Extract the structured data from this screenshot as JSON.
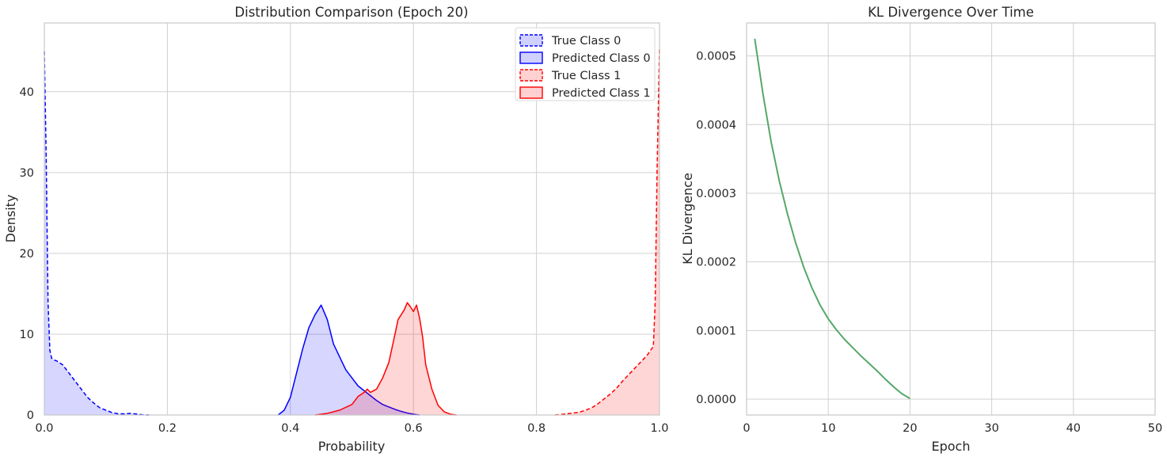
{
  "chart_data": [
    {
      "type": "area",
      "title": "Distribution Comparison (Epoch 20)",
      "xlabel": "Probability",
      "ylabel": "Density",
      "xlim": [
        0,
        1
      ],
      "ylim": [
        0,
        48.5
      ],
      "xticks": [
        "0.0",
        "0.2",
        "0.4",
        "0.6",
        "0.8",
        "1.0"
      ],
      "yticks": [
        "0",
        "10",
        "20",
        "30",
        "40"
      ],
      "grid": true,
      "legend_position": "top-right",
      "series": [
        {
          "name": "True Class 0",
          "color": "#0000ff",
          "linestyle": "dashed",
          "x": [
            0,
            0.003,
            0.006,
            0.009,
            0.012,
            0.016,
            0.02,
            0.03,
            0.04,
            0.05,
            0.06,
            0.07,
            0.08,
            0.09,
            0.1,
            0.11,
            0.12,
            0.13,
            0.14,
            0.15,
            0.16,
            0.17
          ],
          "y": [
            45,
            32,
            14,
            8,
            7,
            6.8,
            6.7,
            6.2,
            5.2,
            4.2,
            3.2,
            2.2,
            1.5,
            0.9,
            0.6,
            0.3,
            0.15,
            0.15,
            0.2,
            0.12,
            0.03,
            0
          ]
        },
        {
          "name": "Predicted Class 0",
          "color": "#0000ff",
          "linestyle": "solid",
          "x": [
            0.38,
            0.39,
            0.4,
            0.41,
            0.42,
            0.43,
            0.44,
            0.45,
            0.46,
            0.47,
            0.48,
            0.49,
            0.5,
            0.51,
            0.52,
            0.53,
            0.54,
            0.55,
            0.56,
            0.57,
            0.58,
            0.59,
            0.6,
            0.61
          ],
          "y": [
            0,
            0.6,
            2.2,
            5.2,
            8.2,
            10.8,
            12.4,
            13.6,
            11.8,
            8.8,
            7.2,
            5.6,
            4.6,
            3.6,
            3.0,
            2.4,
            1.8,
            1.3,
            1.0,
            0.7,
            0.45,
            0.25,
            0.1,
            0
          ]
        },
        {
          "name": "True Class 1",
          "color": "#ff0000",
          "linestyle": "dashed",
          "x": [
            0.83,
            0.85,
            0.87,
            0.88,
            0.89,
            0.9,
            0.91,
            0.92,
            0.93,
            0.94,
            0.95,
            0.96,
            0.97,
            0.98,
            0.99,
            0.993,
            0.996,
            1.0
          ],
          "y": [
            0,
            0.15,
            0.35,
            0.6,
            0.9,
            1.4,
            2.0,
            2.6,
            3.3,
            4.2,
            5.0,
            5.8,
            6.6,
            7.4,
            8.5,
            14,
            30,
            45.5
          ]
        },
        {
          "name": "Predicted Class 1",
          "color": "#ff0000",
          "linestyle": "solid",
          "x": [
            0.44,
            0.46,
            0.48,
            0.5,
            0.51,
            0.52,
            0.525,
            0.53,
            0.54,
            0.55,
            0.56,
            0.57,
            0.575,
            0.58,
            0.585,
            0.59,
            0.595,
            0.6,
            0.605,
            0.61,
            0.615,
            0.62,
            0.63,
            0.64,
            0.65,
            0.66,
            0.67
          ],
          "y": [
            0,
            0.2,
            0.6,
            1.3,
            2.3,
            2.8,
            3.2,
            2.8,
            3.2,
            4.6,
            6.5,
            10.0,
            11.8,
            12.4,
            13.0,
            13.9,
            13.4,
            12.8,
            13.6,
            12.0,
            9.6,
            6.2,
            3.2,
            1.2,
            0.4,
            0.1,
            0
          ]
        }
      ]
    },
    {
      "type": "line",
      "title": "KL Divergence Over Time",
      "xlabel": "Epoch",
      "ylabel": "KL Divergence",
      "xlim": [
        0,
        50
      ],
      "ylim": [
        -2.3e-05,
        0.000548
      ],
      "xticks": [
        "0",
        "10",
        "20",
        "30",
        "40",
        "50"
      ],
      "yticks": [
        "0.0000",
        "0.0001",
        "0.0002",
        "0.0003",
        "0.0004",
        "0.0005"
      ],
      "grid": true,
      "series": [
        {
          "color": "#55a868",
          "x": [
            1,
            2,
            3,
            4,
            5,
            6,
            7,
            8,
            9,
            10,
            11,
            12,
            13,
            14,
            15,
            16,
            17,
            18,
            19,
            20
          ],
          "y": [
            0.000525,
            0.000445,
            0.000375,
            0.000318,
            0.00027,
            0.000228,
            0.000192,
            0.000162,
            0.000137,
            0.000117,
            0.000101,
            8.7e-05,
            7.5e-05,
            6.3e-05,
            5.2e-05,
            4.1e-05,
            2.9e-05,
            1.8e-05,
            8e-06,
            1e-06
          ]
        }
      ]
    }
  ]
}
